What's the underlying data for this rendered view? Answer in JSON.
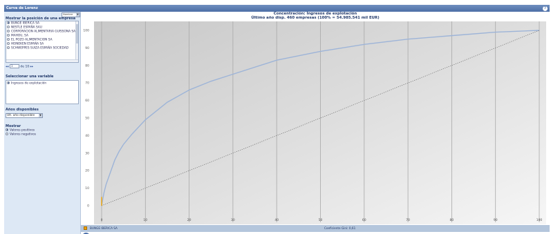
{
  "window": {
    "title": "Curva de Lorenz",
    "help_label": "?"
  },
  "sidebar": {
    "position_title": "Mostrar la posición de una empresa",
    "sort_label": "Nombre",
    "companies": [
      {
        "name": "BUNGE IBERICA SA",
        "selected": true
      },
      {
        "name": "NESTLE ESPAÑA SAU",
        "selected": false
      },
      {
        "name": "CORPORACION ALIMENTARIA GUISSONA SA",
        "selected": false
      },
      {
        "name": "MAHOU, SA",
        "selected": false
      },
      {
        "name": "EL POZO ALIMENTACION SA",
        "selected": false
      },
      {
        "name": "HEINEKEN ESPAÑA SA",
        "selected": false
      },
      {
        "name": "SCHWEPPES SUIZA ESPAÑA SOCIEDAD",
        "selected": false
      }
    ],
    "pager": {
      "prev": "◂◂",
      "page": "1",
      "of_label": "de 10",
      "next": "▸▸"
    },
    "variable_title": "Seleccionar una variable",
    "variable_items": [
      {
        "label": "Ingresos de explotación",
        "selected": true
      }
    ],
    "years_title": "Años disponibles",
    "year_value": "Ult. año disponible",
    "show_title": "Mostrar",
    "show_items": [
      {
        "label": "Valores positivos",
        "selected": true
      },
      {
        "label": "Valores negativos",
        "selected": false
      }
    ]
  },
  "chart": {
    "title_line1": "Concentración: Ingresos de explotación",
    "title_line2": "Último año disp.   460 empresas (100% = 54.985.541 mil EUR)",
    "zoom_icon_label": "🔍",
    "footer_company": "BUNGE IBERICA SA",
    "footer_gini": "Coeficiente Gini: 0,61",
    "colors": {
      "curve": "#9db4d8",
      "diagonal": "#666666",
      "marker": "#f1a400",
      "plot_bg": "#d8d8d8"
    }
  },
  "chart_data": {
    "type": "line",
    "x_ticks": [
      0,
      10,
      20,
      30,
      40,
      50,
      60,
      70,
      80,
      90,
      100
    ],
    "y_ticks": [
      0,
      10,
      20,
      30,
      40,
      50,
      60,
      70,
      80,
      90,
      100
    ],
    "xlim": [
      0,
      100
    ],
    "ylim": [
      0,
      100
    ],
    "series": [
      {
        "x": [
          0,
          0.5,
          1,
          2,
          3,
          4,
          5,
          7,
          10,
          15,
          20,
          25,
          30,
          40,
          50,
          60,
          70,
          80,
          90,
          100
        ],
        "y": [
          0,
          7,
          12,
          19,
          26,
          31,
          35,
          41,
          49,
          59,
          66,
          71,
          75,
          83,
          88,
          92,
          95,
          97,
          99,
          100
        ]
      },
      {
        "x": [
          0,
          100
        ],
        "y": [
          0,
          100
        ]
      }
    ],
    "highlight": {
      "x": 0,
      "y_from": 0,
      "y_to": 5
    },
    "grid": "vertical",
    "legend": "none"
  }
}
